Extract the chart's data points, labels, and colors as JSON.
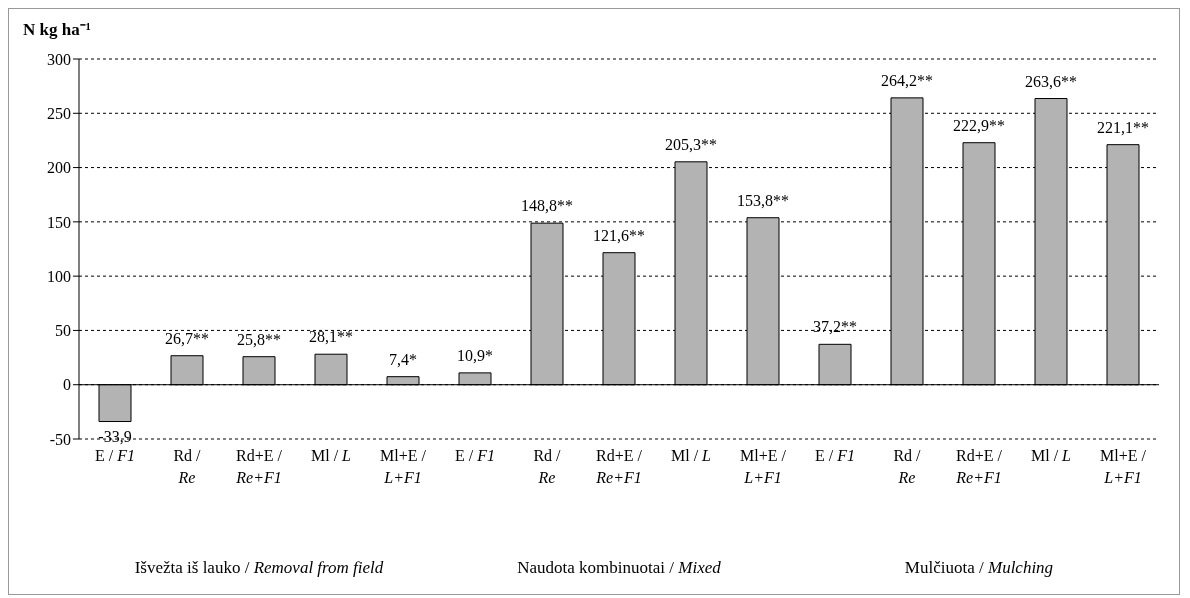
{
  "chart_data": {
    "type": "bar",
    "ylabel": "N kg ha⁻¹",
    "categories": [
      "E / F1",
      "Rd / Re",
      "Rd+E / Re+F1",
      "Ml / L",
      "Ml+E / L+F1",
      "E / F1",
      "Rd / Re",
      "Rd+E / Re+F1",
      "Ml / L",
      "Ml+E / L+F1",
      "E / F1",
      "Rd / Re",
      "Rd+E / Re+F1",
      "Ml / L",
      "Ml+E / L+F1"
    ],
    "values": [
      -33.9,
      26.7,
      25.8,
      28.1,
      7.4,
      10.9,
      148.8,
      121.6,
      205.3,
      153.8,
      37.2,
      264.2,
      222.9,
      263.6,
      221.1
    ],
    "value_labels": [
      "-33,9",
      "26,7**",
      "25,8**",
      "28,1**",
      "7,4*",
      "10,9*",
      "148,8**",
      "121,6**",
      "205,3**",
      "153,8**",
      "37,2**",
      "264,2**",
      "222,9**",
      "263,6**",
      "221,1**"
    ],
    "color": "#b3b3b3",
    "ylim": [
      -50,
      300
    ],
    "yticks": [
      -50,
      0,
      50,
      100,
      150,
      200,
      250,
      300
    ],
    "grid": "y",
    "annotations": [
      "Išvežta iš lauko / Removal from field",
      "Naudota kombinuotai / Mixed",
      "Mulčiuota / Mulching"
    ]
  }
}
